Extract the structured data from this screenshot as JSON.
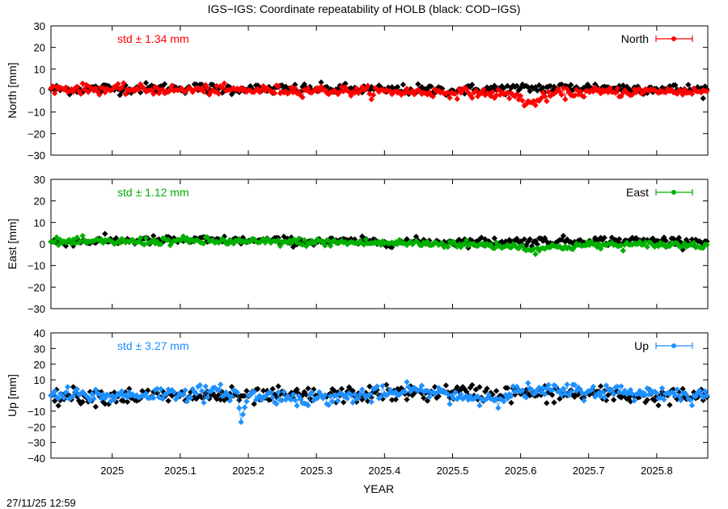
{
  "title": "IGS−IGS: Coordinate repeatability of HOLB (black: COD−IGS)",
  "xlabel": "YEAR",
  "timestamp": "27/11/25 12:59",
  "chart_data": [
    {
      "type": "scatter",
      "component": "North",
      "ylabel": "North [mm]",
      "std_label": "std ± 1.34 mm",
      "legend": "North",
      "color": "#ff0000",
      "xlim": [
        2024.91,
        2025.875
      ],
      "ylim": [
        -30,
        30
      ],
      "yticks": [
        30,
        20,
        10,
        0,
        -10,
        -20,
        -30
      ],
      "xticks": [
        2025,
        2025.1,
        2025.2,
        2025.3,
        2025.4,
        2025.5,
        2025.6,
        2025.7,
        2025.8
      ],
      "series": [
        {
          "name": "IGS-IGS",
          "color": "#ff0000",
          "x": [
            2024.91,
            2025.0,
            2025.1,
            2025.2,
            2025.3,
            2025.4,
            2025.5,
            2025.55,
            2025.6,
            2025.605,
            2025.65,
            2025.7,
            2025.8,
            2025.875
          ],
          "y": [
            1.0,
            0.5,
            0.3,
            0.2,
            0.0,
            -0.5,
            -1.0,
            -1.2,
            -2.5,
            -7.0,
            -1.5,
            -0.8,
            -0.5,
            -0.3
          ]
        },
        {
          "name": "COD-IGS",
          "color": "#000000",
          "x": [
            2024.91,
            2025.0,
            2025.1,
            2025.2,
            2025.3,
            2025.4,
            2025.5,
            2025.6,
            2025.7,
            2025.8,
            2025.875
          ],
          "y": [
            0.5,
            1.0,
            1.2,
            0.5,
            0.8,
            0.5,
            0.2,
            1.0,
            1.5,
            0.8,
            0.5
          ]
        }
      ]
    },
    {
      "type": "scatter",
      "component": "East",
      "ylabel": "East [mm]",
      "std_label": "std ± 1.12 mm",
      "legend": "East",
      "color": "#00b000",
      "xlim": [
        2024.91,
        2025.875
      ],
      "ylim": [
        -30,
        30
      ],
      "yticks": [
        30,
        20,
        10,
        0,
        -10,
        -20,
        -30
      ],
      "xticks": [
        2025,
        2025.1,
        2025.2,
        2025.3,
        2025.4,
        2025.5,
        2025.6,
        2025.7,
        2025.8
      ],
      "series": [
        {
          "name": "IGS-IGS",
          "color": "#00b000",
          "x": [
            2024.91,
            2025.0,
            2025.1,
            2025.2,
            2025.3,
            2025.4,
            2025.5,
            2025.6,
            2025.605,
            2025.7,
            2025.8,
            2025.875
          ],
          "y": [
            1.0,
            1.0,
            1.5,
            1.0,
            0.8,
            0.5,
            0.0,
            -1.0,
            -2.5,
            -0.5,
            -0.5,
            -0.3
          ]
        },
        {
          "name": "COD-IGS",
          "color": "#000000",
          "x": [
            2024.91,
            2025.0,
            2025.1,
            2025.2,
            2025.3,
            2025.4,
            2025.5,
            2025.6,
            2025.7,
            2025.8,
            2025.875
          ],
          "y": [
            1.0,
            1.5,
            1.8,
            1.5,
            1.2,
            1.0,
            1.0,
            1.2,
            1.5,
            1.5,
            1.2
          ]
        }
      ]
    },
    {
      "type": "scatter",
      "component": "Up",
      "ylabel": "Up [mm]",
      "std_label": "std ± 3.27 mm",
      "legend": "Up",
      "color": "#1e90ff",
      "xlim": [
        2024.91,
        2025.875
      ],
      "ylim": [
        -40,
        40
      ],
      "yticks": [
        40,
        30,
        20,
        10,
        0,
        -10,
        -20,
        -30,
        -40
      ],
      "xticks": [
        2025,
        2025.1,
        2025.2,
        2025.3,
        2025.4,
        2025.5,
        2025.6,
        2025.7,
        2025.8
      ],
      "series": [
        {
          "name": "IGS-IGS",
          "color": "#1e90ff",
          "x": [
            2024.91,
            2025.0,
            2025.1,
            2025.185,
            2025.19,
            2025.2,
            2025.3,
            2025.4,
            2025.45,
            2025.5,
            2025.55,
            2025.6,
            2025.7,
            2025.8,
            2025.875
          ],
          "y": [
            0.0,
            0.0,
            1.5,
            2.0,
            -17.0,
            0.0,
            -2.0,
            1.0,
            3.0,
            0.0,
            -2.0,
            2.5,
            3.0,
            1.5,
            0.0
          ]
        },
        {
          "name": "COD-IGS",
          "color": "#000000",
          "x": [
            2024.91,
            2025.0,
            2025.1,
            2025.2,
            2025.3,
            2025.4,
            2025.5,
            2025.6,
            2025.7,
            2025.8,
            2025.875
          ],
          "y": [
            0.0,
            -0.5,
            -0.5,
            -0.5,
            0.0,
            1.0,
            2.0,
            1.0,
            0.5,
            -0.5,
            -1.0
          ]
        }
      ]
    }
  ]
}
